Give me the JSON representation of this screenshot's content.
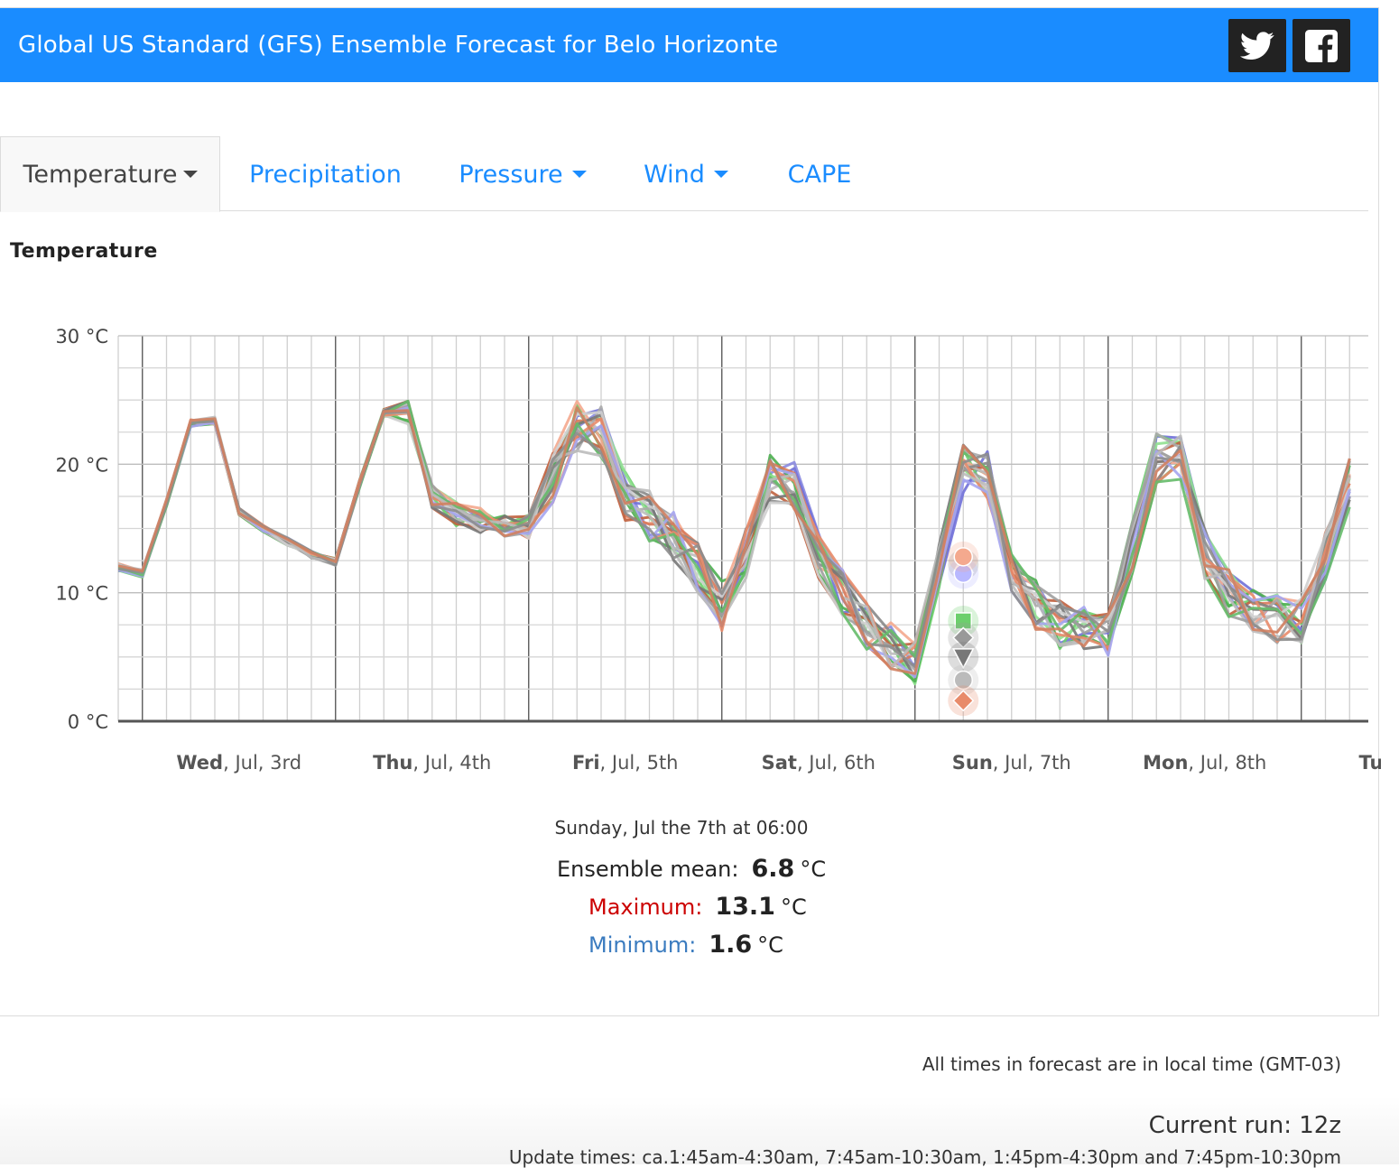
{
  "header": {
    "title": "Global US Standard (GFS) Ensemble Forecast for Belo Horizonte",
    "twitter_icon": "twitter-icon",
    "facebook_icon": "facebook-icon",
    "bg_color": "#1a8cff"
  },
  "tabs": [
    {
      "label": "Temperature",
      "active": true,
      "dropdown": true
    },
    {
      "label": "Precipitation",
      "active": false,
      "dropdown": false
    },
    {
      "label": "Pressure",
      "active": false,
      "dropdown": true
    },
    {
      "label": "Wind",
      "active": false,
      "dropdown": true
    },
    {
      "label": "CAPE",
      "active": false,
      "dropdown": false
    }
  ],
  "section_title": "Temperature",
  "chart_data": {
    "type": "line",
    "title": "",
    "ylim": [
      0,
      30
    ],
    "y_ticks": [
      "0 °C",
      "10 °C",
      "20 °C",
      "30 °C"
    ],
    "x_ticks": [
      {
        "bold": "Wed",
        "rest": ", Jul, 3rd"
      },
      {
        "bold": "Thu",
        "rest": ", Jul, 4th"
      },
      {
        "bold": "Fri",
        "rest": ", Jul, 5th"
      },
      {
        "bold": "Sat",
        "rest": ", Jul, 6th"
      },
      {
        "bold": "Sun",
        "rest": ", Jul, 7th"
      },
      {
        "bold": "Mon",
        "rest": ", Jul, 8th"
      },
      {
        "bold": "Tue",
        "rest": ", Jul,"
      }
    ],
    "x_start": "2019-07-02T21:00",
    "step_hours": 3,
    "grid": true,
    "base_series": [
      12.0,
      11.5,
      17.0,
      23.2,
      23.4,
      16.3,
      15.0,
      14.0,
      13.0,
      12.4,
      18.5,
      24.0,
      24.0,
      17.5,
      16.2,
      15.6,
      15.0,
      15.2,
      19.0,
      23.0,
      22.5,
      17.5,
      16.0,
      14.5,
      12.0,
      9.0,
      13.0,
      19.0,
      18.5,
      13.0,
      10.0,
      7.5,
      6.0,
      4.8,
      12.0,
      19.5,
      19.0,
      12.0,
      9.0,
      7.5,
      7.0,
      6.5,
      13.5,
      20.5,
      20.5,
      13.0,
      10.0,
      8.5,
      8.0,
      8.0,
      13.0,
      18.5
    ],
    "member_colors": [
      "#8a8ae0",
      "#7070d8",
      "#6ccf6c",
      "#90e090",
      "#4caf50",
      "#f4a98e",
      "#d97a5a",
      "#c0603e",
      "#aaaaaa",
      "#bdbdbd",
      "#888888",
      "#9e9e9e",
      "#777777",
      "#cfcfcf",
      "#e88b6a",
      "#a5a5f0",
      "#66bb6a",
      "#bbbbbb",
      "#8d8d8d",
      "#d08060"
    ],
    "selected_time": "Sunday, Jul the 7th at 06:00",
    "markers": [
      {
        "shape": "triangle-up",
        "value": 12.2,
        "color": "#888888"
      },
      {
        "shape": "circle",
        "value": 11.5,
        "color": "#b8b8ff"
      },
      {
        "shape": "circle",
        "value": 12.8,
        "color": "#f4a98e"
      },
      {
        "shape": "square",
        "value": 7.8,
        "color": "#6ccf6c"
      },
      {
        "shape": "diamond",
        "value": 6.5,
        "color": "#999999"
      },
      {
        "shape": "triangle-down",
        "value": 5.0,
        "color": "#777777"
      },
      {
        "shape": "circle",
        "value": 3.2,
        "color": "#bbbbbb"
      },
      {
        "shape": "diamond",
        "value": 1.6,
        "color": "#e88b6a"
      }
    ]
  },
  "readout": {
    "when": "Sunday, Jul the 7th at 06:00",
    "mean_label": "Ensemble mean:",
    "mean_value": "6.8",
    "max_label": "Maximum:",
    "max_value": "13.1",
    "min_label": "Minimum:",
    "min_value": "1.6",
    "unit": "°C",
    "max_color": "#cc0000",
    "min_color": "#3a7bbf"
  },
  "footer": {
    "timezone": "All times in forecast are in local time (GMT-03)",
    "current_run": "Current run: 12z",
    "update_times": "Update times: ca.1:45am-4:30am, 7:45am-10:30am, 1:45pm-4:30pm and 7:45pm-10:30pm"
  }
}
